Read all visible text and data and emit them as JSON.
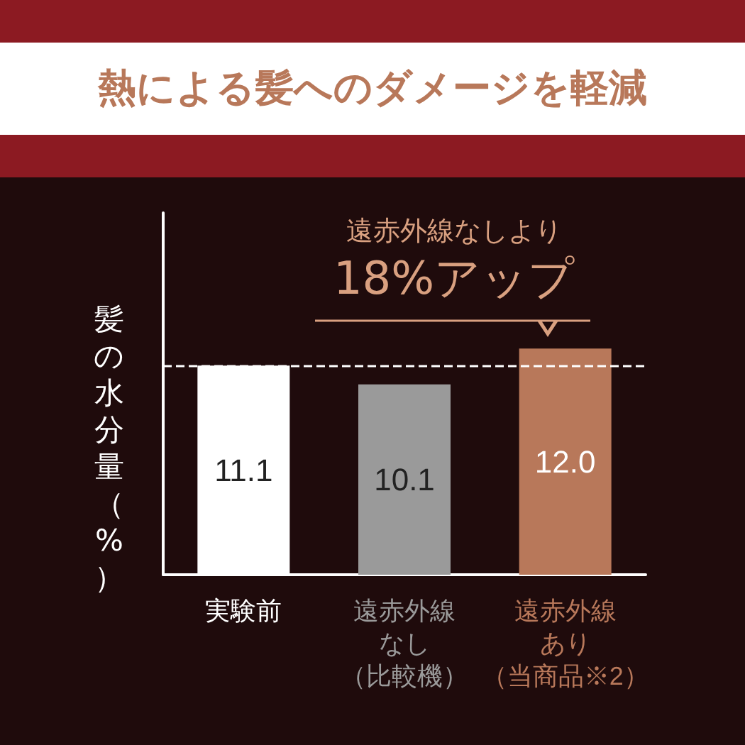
{
  "chart_data": {
    "type": "bar",
    "title": "熱による髪へのダメージを軽減",
    "ylabel": "髪の水分量（%）",
    "categories": [
      "実験前",
      "遠赤外線なし（比較機）",
      "遠赤外線あり（当商品※2）"
    ],
    "values": [
      11.1,
      10.1,
      12.0
    ],
    "colors": [
      "#ffffff",
      "#9a9a9a",
      "#b8785a"
    ],
    "value_labels": [
      "11.1",
      "10.1",
      "12.0"
    ],
    "ref_lines": [
      {
        "axis": "y",
        "value": 11.1,
        "color": "#ffffff",
        "line_style": "dashed"
      }
    ],
    "annotations": [
      "遠赤外線なしより",
      "18%アップ"
    ]
  }
}
